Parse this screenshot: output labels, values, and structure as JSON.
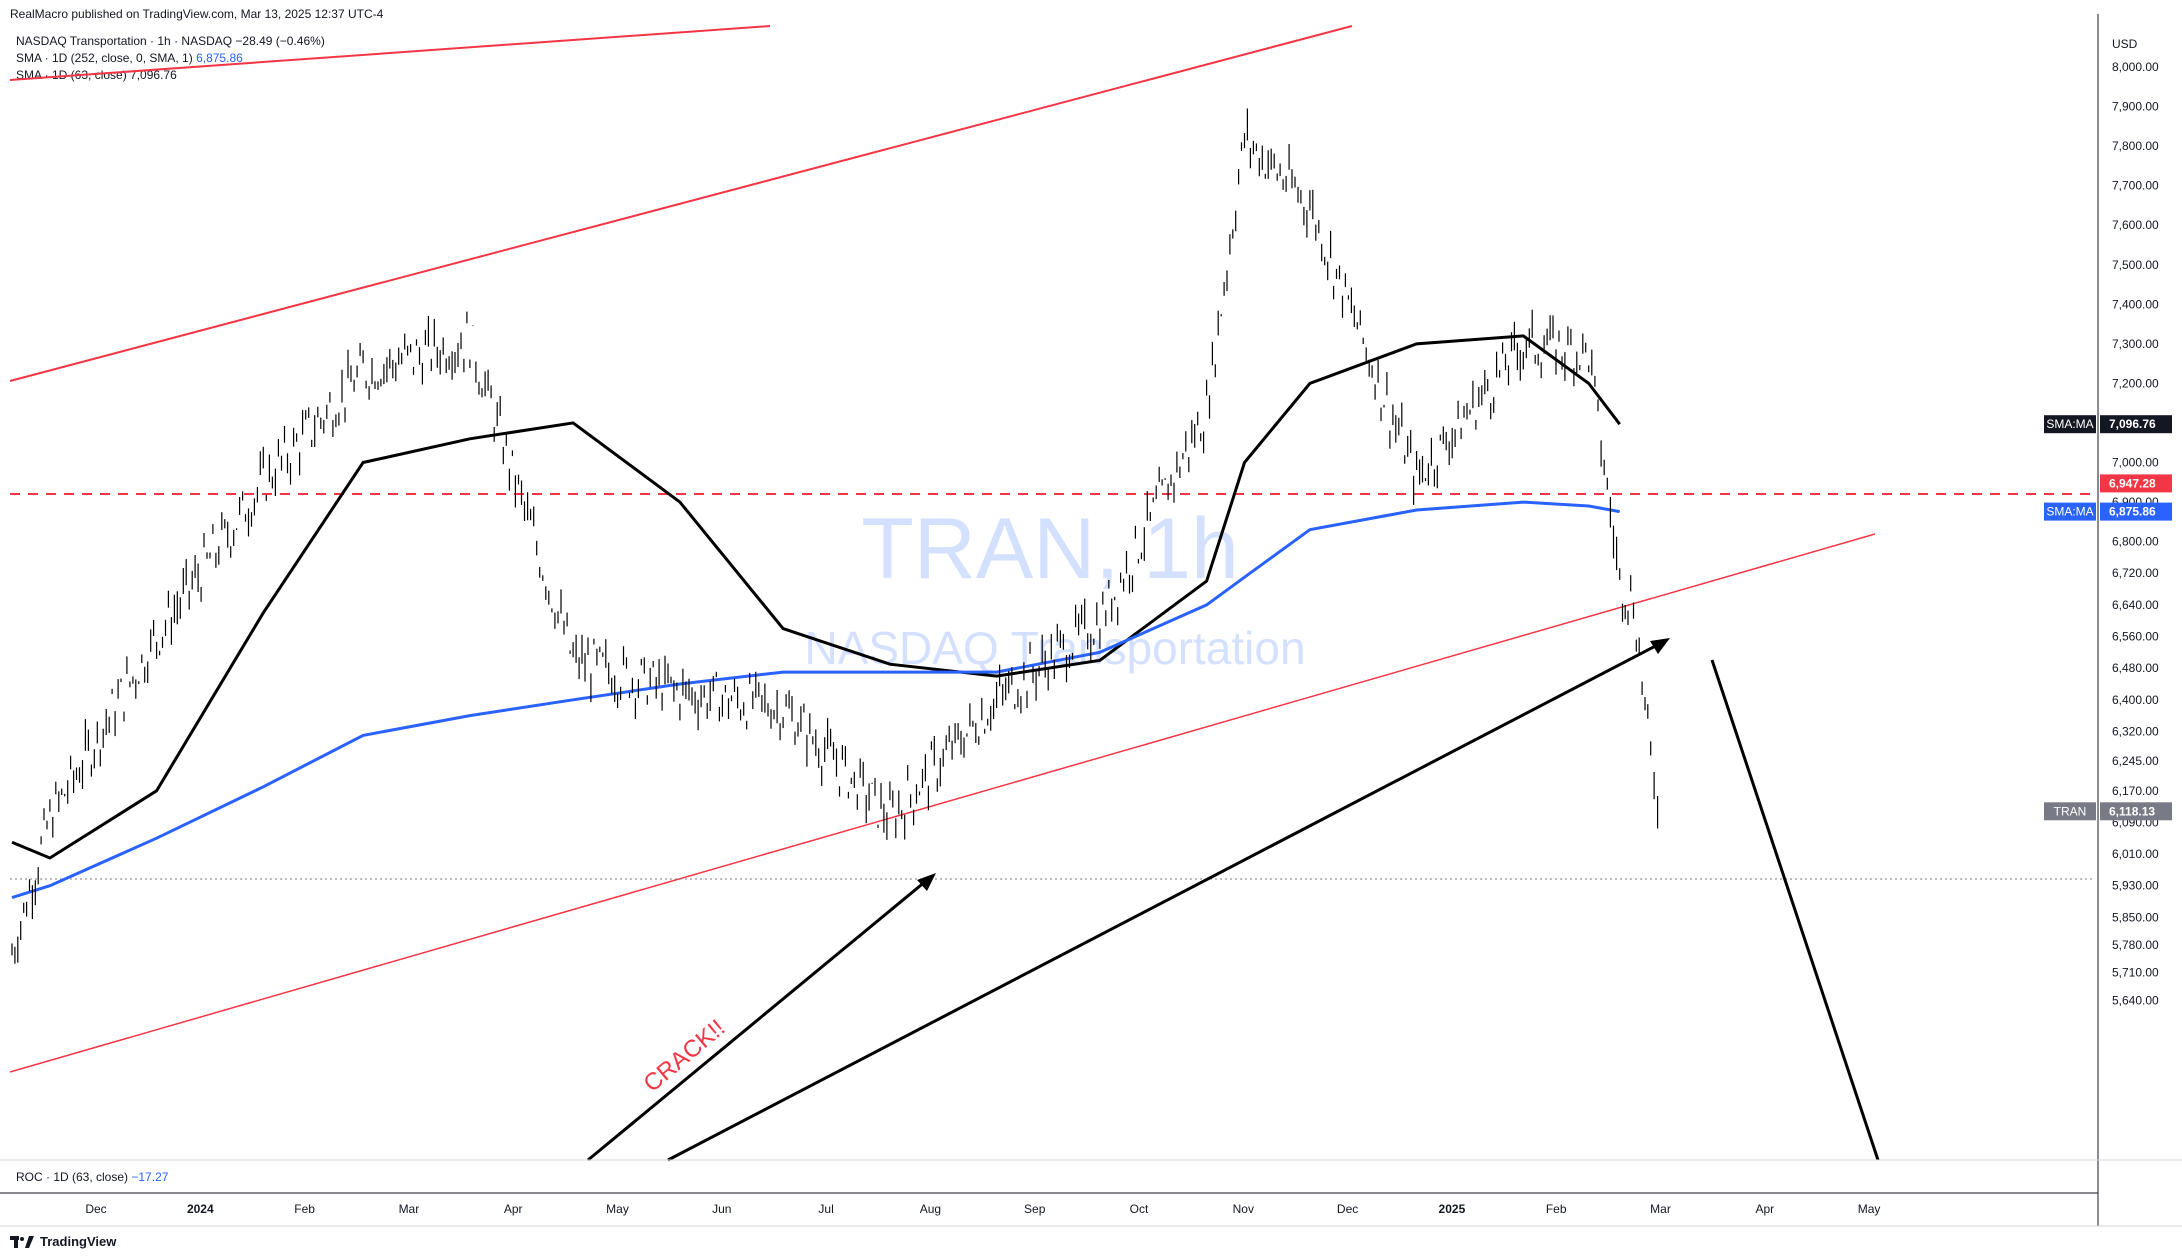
{
  "header": {
    "published": "RealMacro published on TradingView.com, Mar 13, 2025 12:37 UTC-4"
  },
  "legend": {
    "symbol_line": "NASDAQ Transportation · 1h · NASDAQ",
    "change": "−28.49 (−0.46%)",
    "sma1_label": "SMA · 1D (252, close, 0, SMA, 1)",
    "sma1_value": "6,875.86",
    "sma2_label": "SMA · 1D (63, close)",
    "sma2_value": "7,096.76"
  },
  "watermark": {
    "title": "TRAN, 1h",
    "subtitle": "NASDAQ Transportation"
  },
  "annotation": {
    "text": "CRACK!!"
  },
  "roc": {
    "label": "ROC · 1D (63, close)",
    "value": "−17.27"
  },
  "footer": {
    "brand": "TradingView"
  },
  "price_axis": {
    "currency": "USD",
    "ticks": [
      "8,000.00",
      "7,900.00",
      "7,800.00",
      "7,700.00",
      "7,600.00",
      "7,500.00",
      "7,400.00",
      "7,300.00",
      "7,200.00",
      "7,000.00",
      "6,900.00",
      "6,800.00",
      "6,720.00",
      "6,640.00",
      "6,560.00",
      "6,480.00",
      "6,400.00",
      "6,320.00",
      "6,245.00",
      "6,170.00",
      "6,090.00",
      "6,010.00",
      "5,930.00",
      "5,850.00",
      "5,780.00",
      "5,710.00",
      "5,640.00"
    ],
    "labels": [
      {
        "name": "SMA:MA",
        "value": "7,096.76",
        "color": "#131722"
      },
      {
        "name": "",
        "value": "6,947.28",
        "color": "#f23645"
      },
      {
        "name": "SMA:MA",
        "value": "6,875.86",
        "color": "#2962ff"
      },
      {
        "name": "TRAN",
        "value": "6,118.13",
        "color": "#787b86"
      }
    ]
  },
  "time_axis": {
    "ticks": [
      {
        "label": "Dec",
        "bold": false
      },
      {
        "label": "2024",
        "bold": true
      },
      {
        "label": "Feb",
        "bold": false
      },
      {
        "label": "Mar",
        "bold": false
      },
      {
        "label": "Apr",
        "bold": false
      },
      {
        "label": "May",
        "bold": false
      },
      {
        "label": "Jun",
        "bold": false
      },
      {
        "label": "Jul",
        "bold": false
      },
      {
        "label": "Aug",
        "bold": false
      },
      {
        "label": "Sep",
        "bold": false
      },
      {
        "label": "Oct",
        "bold": false
      },
      {
        "label": "Nov",
        "bold": false
      },
      {
        "label": "Dec",
        "bold": false
      },
      {
        "label": "2025",
        "bold": true
      },
      {
        "label": "Feb",
        "bold": false
      },
      {
        "label": "Mar",
        "bold": false
      },
      {
        "label": "Apr",
        "bold": false
      },
      {
        "label": "May",
        "bold": false
      }
    ]
  },
  "colors": {
    "sma252": "#2962ff",
    "sma63": "#000000",
    "trendline": "#f23645",
    "price": "#000000",
    "horizontal_level": "#f23645"
  },
  "chart_data": {
    "type": "line",
    "title": "NASDAQ Transportation",
    "symbol": "TRAN",
    "interval": "1h",
    "currency": "USD",
    "x": [
      "2023-11-20",
      "2023-12-01",
      "2024-01-01",
      "2024-02-01",
      "2024-03-01",
      "2024-04-01",
      "2024-05-01",
      "2024-06-01",
      "2024-07-01",
      "2024-08-01",
      "2024-09-01",
      "2024-10-01",
      "2024-11-01",
      "2024-11-12",
      "2024-12-01",
      "2025-01-01",
      "2025-02-01",
      "2025-02-20",
      "2025-03-01",
      "2025-03-05",
      "2025-03-10",
      "2025-03-13"
    ],
    "series": [
      {
        "name": "TRAN",
        "values": [
          5760,
          6100,
          6560,
          6950,
          7230,
          7310,
          6500,
          6420,
          6380,
          6100,
          6400,
          6600,
          7130,
          7820,
          7650,
          6960,
          7300,
          7280,
          6700,
          6650,
          6250,
          6118.13
        ]
      },
      {
        "name": "SMA · 1D (63, close)",
        "values": [
          6040,
          6000,
          6170,
          6620,
          7000,
          7060,
          7100,
          6900,
          6580,
          6490,
          6460,
          6500,
          6700,
          7000,
          7200,
          7300,
          7320,
          7200,
          7096.76,
          7096.76,
          7096.76,
          7096.76
        ]
      },
      {
        "name": "SMA · 1D (252, close, 0, SMA, 1)",
        "values": [
          5900,
          5930,
          6050,
          6180,
          6310,
          6360,
          6400,
          6440,
          6470,
          6470,
          6470,
          6520,
          6640,
          6710,
          6830,
          6880,
          6900,
          6890,
          6875.86,
          6875.86,
          6875.86,
          6875.86
        ]
      }
    ],
    "horizontal_levels": [
      6947.28
    ],
    "ylim": [
      5600,
      8040
    ],
    "ylabel": "",
    "xlabel": "",
    "grid": false,
    "last_price": 6118.13
  }
}
